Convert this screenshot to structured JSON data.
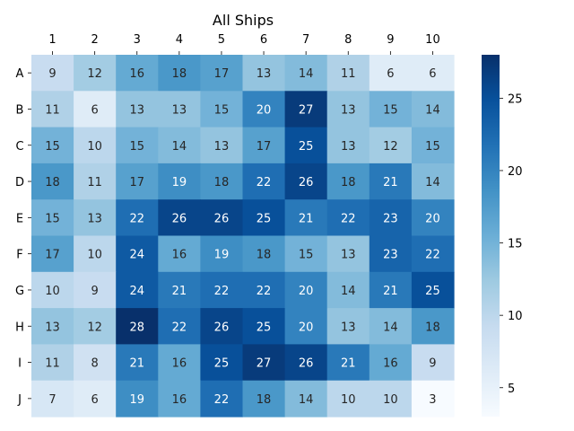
{
  "chart_data": {
    "type": "heatmap",
    "title": "All Ships",
    "x_categories": [
      "1",
      "2",
      "3",
      "4",
      "5",
      "6",
      "7",
      "8",
      "9",
      "10"
    ],
    "y_categories": [
      "A",
      "B",
      "C",
      "D",
      "E",
      "F",
      "G",
      "H",
      "I",
      "J"
    ],
    "values": [
      [
        9,
        12,
        16,
        18,
        17,
        13,
        14,
        11,
        6,
        6
      ],
      [
        11,
        6,
        13,
        13,
        15,
        20,
        27,
        13,
        15,
        14
      ],
      [
        15,
        10,
        15,
        14,
        13,
        17,
        25,
        13,
        12,
        15
      ],
      [
        18,
        11,
        17,
        19,
        18,
        22,
        26,
        18,
        21,
        14
      ],
      [
        15,
        13,
        22,
        26,
        26,
        25,
        21,
        22,
        23,
        20
      ],
      [
        17,
        10,
        24,
        16,
        19,
        18,
        15,
        13,
        23,
        22
      ],
      [
        10,
        9,
        24,
        21,
        22,
        22,
        20,
        14,
        21,
        25
      ],
      [
        13,
        12,
        28,
        22,
        26,
        25,
        20,
        13,
        14,
        18
      ],
      [
        11,
        8,
        21,
        16,
        25,
        27,
        26,
        21,
        16,
        9
      ],
      [
        7,
        6,
        19,
        16,
        22,
        18,
        14,
        10,
        10,
        3
      ]
    ],
    "colormap": "Blues",
    "vmin": 3,
    "vmax": 28,
    "x_axis_position": "top",
    "colorbar": {
      "ticks": [
        "5",
        "10",
        "15",
        "20",
        "25"
      ],
      "position": "right"
    },
    "annotations": true,
    "grid": false
  }
}
